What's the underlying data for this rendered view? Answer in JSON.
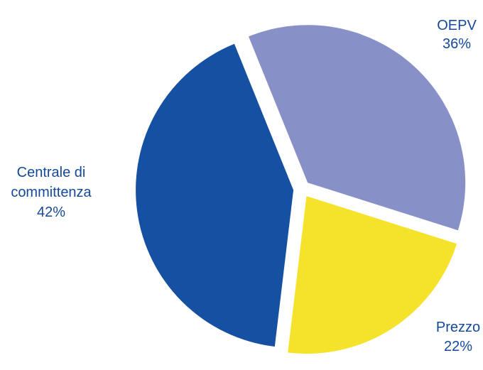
{
  "chart_data": {
    "type": "pie",
    "title": "",
    "slices": [
      {
        "name": "OEPV",
        "value": 36,
        "label": "36%",
        "color": "#8791c7"
      },
      {
        "name": "Prezzo",
        "value": 22,
        "label": "22%",
        "color": "#f5e32b"
      },
      {
        "name": "Centrale di commitenza",
        "name_lines": [
          "Centrale di",
          "committenza"
        ],
        "value": 42,
        "label": "42%",
        "color": "#1650a3"
      }
    ],
    "exploded": true
  }
}
